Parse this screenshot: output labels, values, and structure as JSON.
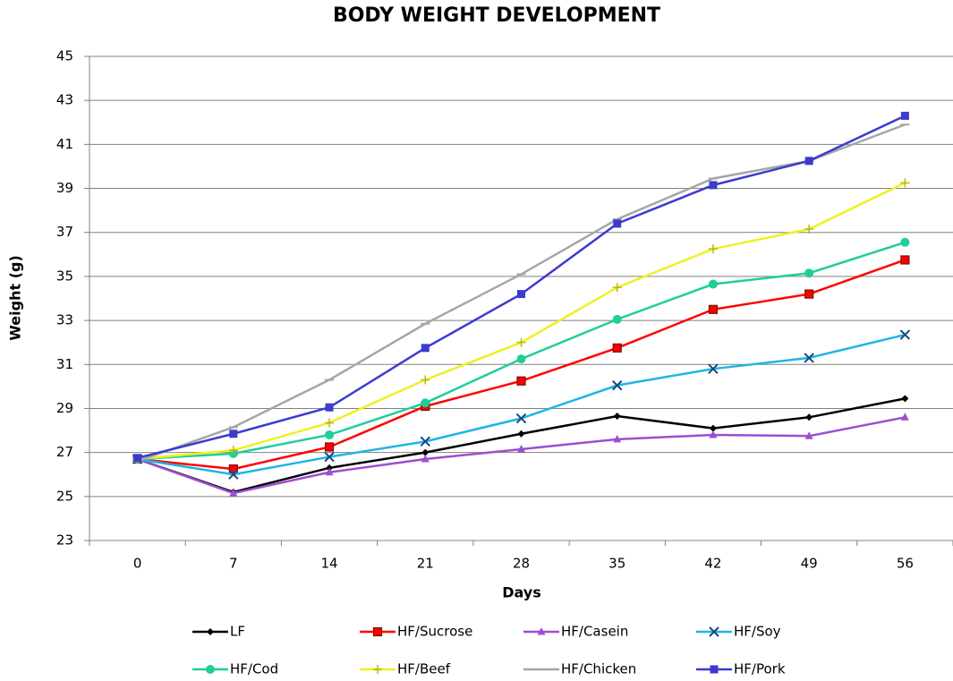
{
  "chart_data": {
    "type": "line",
    "title": "BODY WEIGHT DEVELOPMENT",
    "x_label": "Days",
    "y_label": "Weight (g)",
    "categories": [
      "0",
      "7",
      "14",
      "21",
      "28",
      "35",
      "42",
      "49",
      "56"
    ],
    "ylim": [
      23,
      45
    ],
    "yticks": [
      23,
      25,
      27,
      29,
      31,
      33,
      35,
      37,
      39,
      41,
      43,
      45
    ],
    "grid": true,
    "legend": "bottom",
    "series": [
      {
        "name": "LF",
        "color": "#000000",
        "marker": "diamond",
        "values": [
          26.7,
          25.2,
          26.3,
          27.0,
          27.85,
          28.65,
          28.1,
          28.6,
          29.45
        ]
      },
      {
        "name": "HF/Sucrose",
        "color": "#ff0000",
        "marker": "square",
        "values": [
          26.7,
          26.25,
          27.25,
          29.1,
          30.25,
          31.75,
          33.5,
          34.2,
          35.75
        ]
      },
      {
        "name": "HF/Casein",
        "color": "#9b4fd0",
        "marker": "triangle",
        "values": [
          26.7,
          25.15,
          26.1,
          26.7,
          27.15,
          27.6,
          27.8,
          27.75,
          28.6
        ]
      },
      {
        "name": "HF/Soy",
        "color": "#1fb4e8",
        "marker": "x",
        "values": [
          26.7,
          26.0,
          26.8,
          27.5,
          28.55,
          30.05,
          30.8,
          31.3,
          32.35
        ]
      },
      {
        "name": "HF/Cod",
        "color": "#1fce9a",
        "marker": "circle",
        "values": [
          26.7,
          26.95,
          27.8,
          29.25,
          31.25,
          33.05,
          34.65,
          35.15,
          36.55
        ]
      },
      {
        "name": "HF/Beef",
        "color": "#f0f020",
        "marker": "plus",
        "values": [
          26.7,
          27.1,
          28.35,
          30.3,
          32.0,
          34.5,
          36.25,
          37.15,
          39.25
        ]
      },
      {
        "name": "HF/Chicken",
        "color": "#a6a6a6",
        "marker": "dash",
        "values": [
          26.6,
          28.15,
          30.3,
          32.85,
          35.1,
          37.6,
          39.45,
          40.25,
          41.9
        ]
      },
      {
        "name": "HF/Pork",
        "color": "#3b3bd0",
        "marker": "square",
        "values": [
          26.75,
          27.85,
          29.05,
          31.75,
          34.2,
          37.4,
          39.15,
          40.25,
          42.3
        ]
      }
    ]
  }
}
